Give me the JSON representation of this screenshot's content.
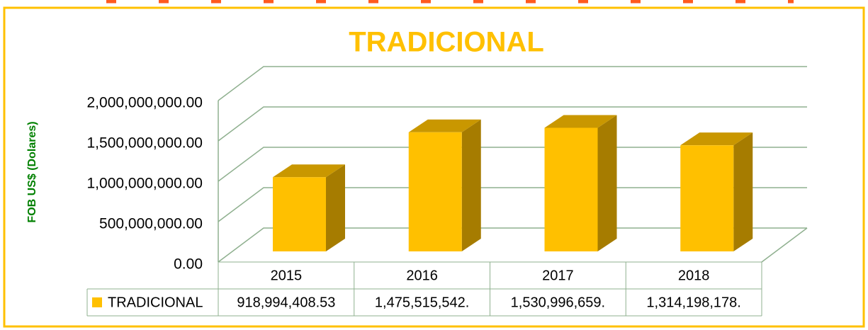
{
  "chart_data": {
    "type": "bar",
    "title": "TRADICIONAL",
    "y_label": "FOB  US$  (Dolares)",
    "categories": [
      "2015",
      "2016",
      "2017",
      "2018"
    ],
    "series": [
      {
        "name": "TRADICIONAL",
        "color": "#ffc000",
        "values": [
          918994408.53,
          1475515542,
          1530996659,
          1314198178
        ],
        "value_labels": [
          "918,994,408.53",
          "1,475,515,542.",
          "1,530,996,659.",
          "1,314,198,178."
        ]
      }
    ],
    "ylim": [
      0,
      2000000000
    ],
    "yticks": [
      {
        "value": 0,
        "label": "0.00"
      },
      {
        "value": 500000000,
        "label": "500,000,000.00"
      },
      {
        "value": 1000000000,
        "label": "1,000,000,000.00"
      },
      {
        "value": 1500000000,
        "label": "1,500,000,000.00"
      },
      {
        "value": 2000000000,
        "label": "2,000,000,000.00"
      }
    ],
    "grid": true,
    "legend": "table"
  }
}
